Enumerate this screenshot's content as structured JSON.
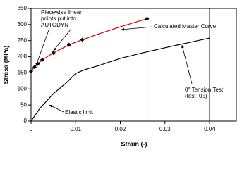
{
  "chart_data": {
    "type": "line",
    "x_label": "Strain (-)",
    "y_label": "Stress (MPa)",
    "xlim": [
      0,
      0.046
    ],
    "ylim": [
      0,
      350
    ],
    "xticks": [
      0,
      0.01,
      0.02,
      0.03,
      0.04
    ],
    "yticks": [
      0,
      50,
      100,
      150,
      200,
      250,
      300,
      350
    ],
    "series": [
      {
        "name": "Calculated Master Curve",
        "color": "#d00000",
        "marker": "none",
        "x": [
          0,
          0.0008,
          0.0015,
          0.0025,
          0.005,
          0.0085,
          0.0115,
          0.015,
          0.02,
          0.026
        ],
        "values": [
          155,
          168,
          178,
          190,
          212,
          237,
          253,
          270,
          293,
          318
        ]
      },
      {
        "name": "Piecewise linear points put into AUTODYN",
        "color": "#000000",
        "marker": "diamond",
        "x": [
          0,
          0.0008,
          0.0015,
          0.0025,
          0.005,
          0.0085,
          0.0115,
          0.026
        ],
        "values": [
          155,
          168,
          178,
          190,
          212,
          237,
          253,
          318
        ]
      },
      {
        "name": "0° Tension Test (test_05)",
        "color": "#000000",
        "marker": "none",
        "x": [
          0,
          0.002,
          0.005,
          0.008,
          0.01,
          0.012,
          0.015,
          0.02,
          0.025,
          0.03,
          0.035,
          0.04
        ],
        "values": [
          0,
          40,
          85,
          120,
          148,
          160,
          172,
          195,
          212,
          228,
          243,
          258
        ]
      }
    ],
    "vlines": [
      {
        "x": 0.026,
        "color": "#d00000"
      },
      {
        "x": 0.04,
        "color": "#000000"
      }
    ],
    "annotations": [
      "Elastic limit"
    ]
  }
}
